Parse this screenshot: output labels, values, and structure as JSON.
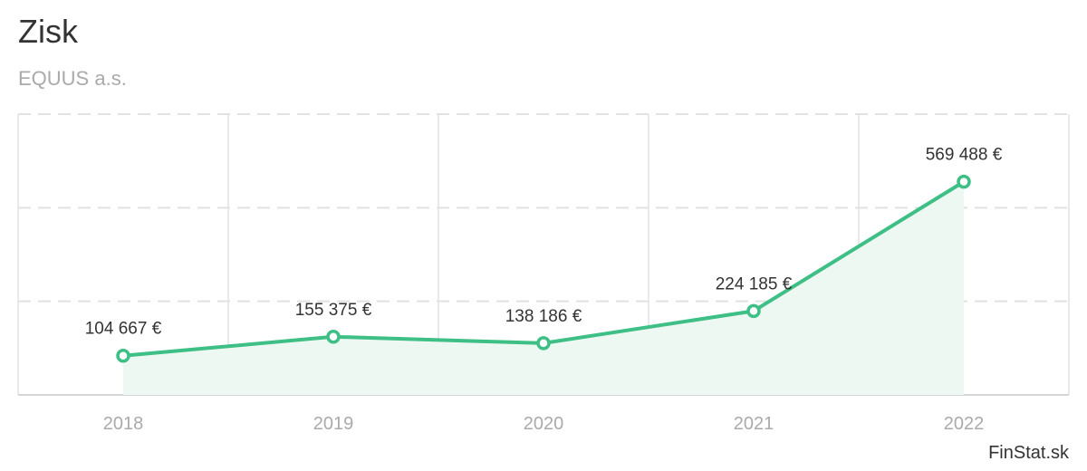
{
  "title": "Zisk",
  "subtitle": "EQUUS a.s.",
  "credit": "FinStat.sk",
  "colors": {
    "line": "#3dbf85",
    "area": "#eef8f3",
    "grid": "#e2e2e2",
    "axis_text": "#aaaaaa",
    "label_text": "#333333"
  },
  "chart_data": {
    "type": "line",
    "categories": [
      "2018",
      "2019",
      "2020",
      "2021",
      "2022"
    ],
    "values": [
      104667,
      155375,
      138186,
      224185,
      569488
    ],
    "data_labels": [
      "104 667 €",
      "155 375 €",
      "138 186 €",
      "224 185 €",
      "569 488 €"
    ],
    "ylim": [
      0,
      750000
    ],
    "grid": true,
    "area_fill": true,
    "xlabel": "",
    "ylabel": ""
  }
}
